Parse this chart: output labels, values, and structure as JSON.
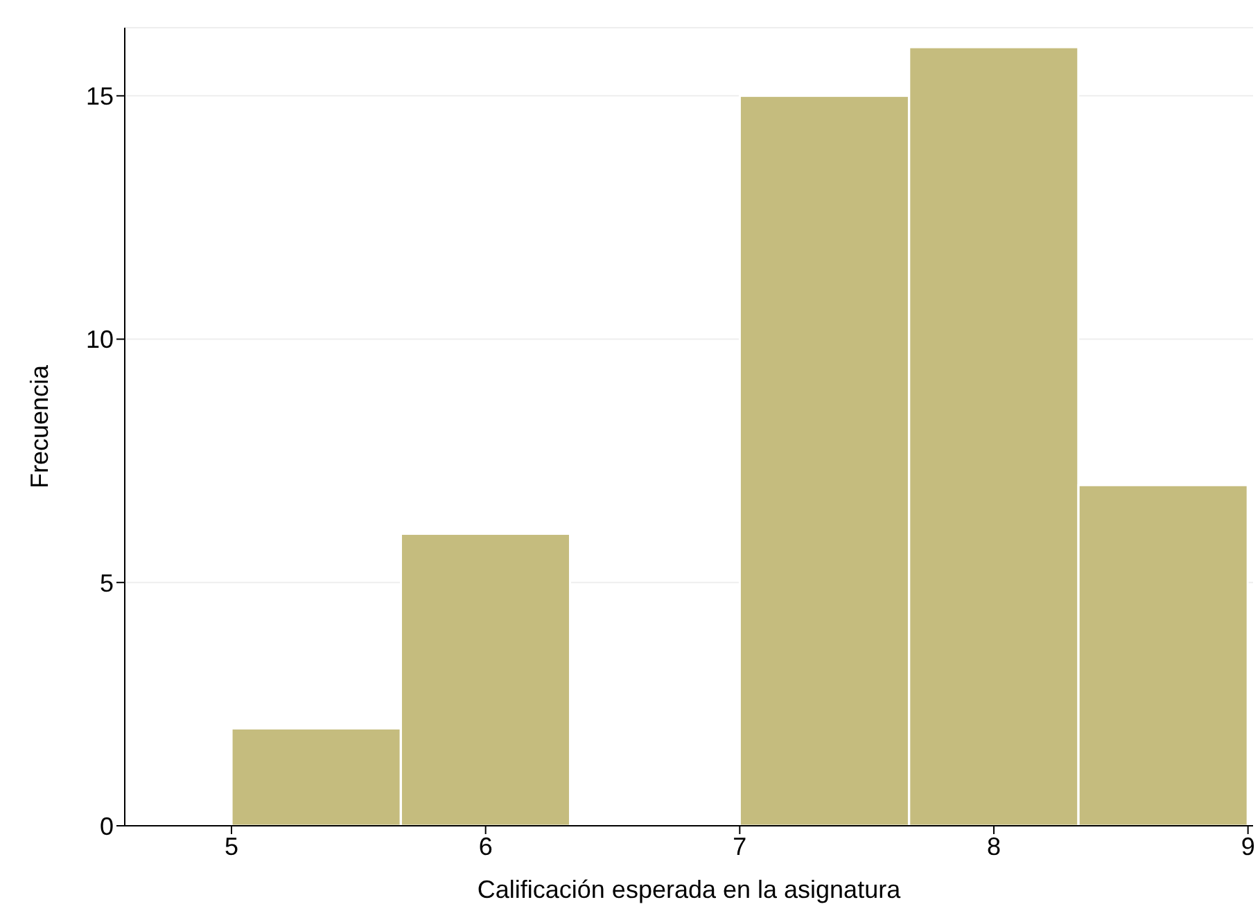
{
  "chart_data": {
    "type": "histogram",
    "xlabel": "Calificación esperada en la asignatura",
    "ylabel": "Frecuencia",
    "bins": [
      5,
      5.667,
      6.333,
      7,
      7.667,
      8.333,
      9
    ],
    "values": [
      2,
      6,
      0,
      15,
      16,
      7
    ],
    "color": "#c5bc7e",
    "xlim": [
      4.58,
      9.02
    ],
    "xticks": [
      5,
      6,
      7,
      8,
      9
    ],
    "ylim": [
      0,
      16.4
    ],
    "yticks": [
      0,
      5,
      10,
      15
    ],
    "grid": "y"
  }
}
